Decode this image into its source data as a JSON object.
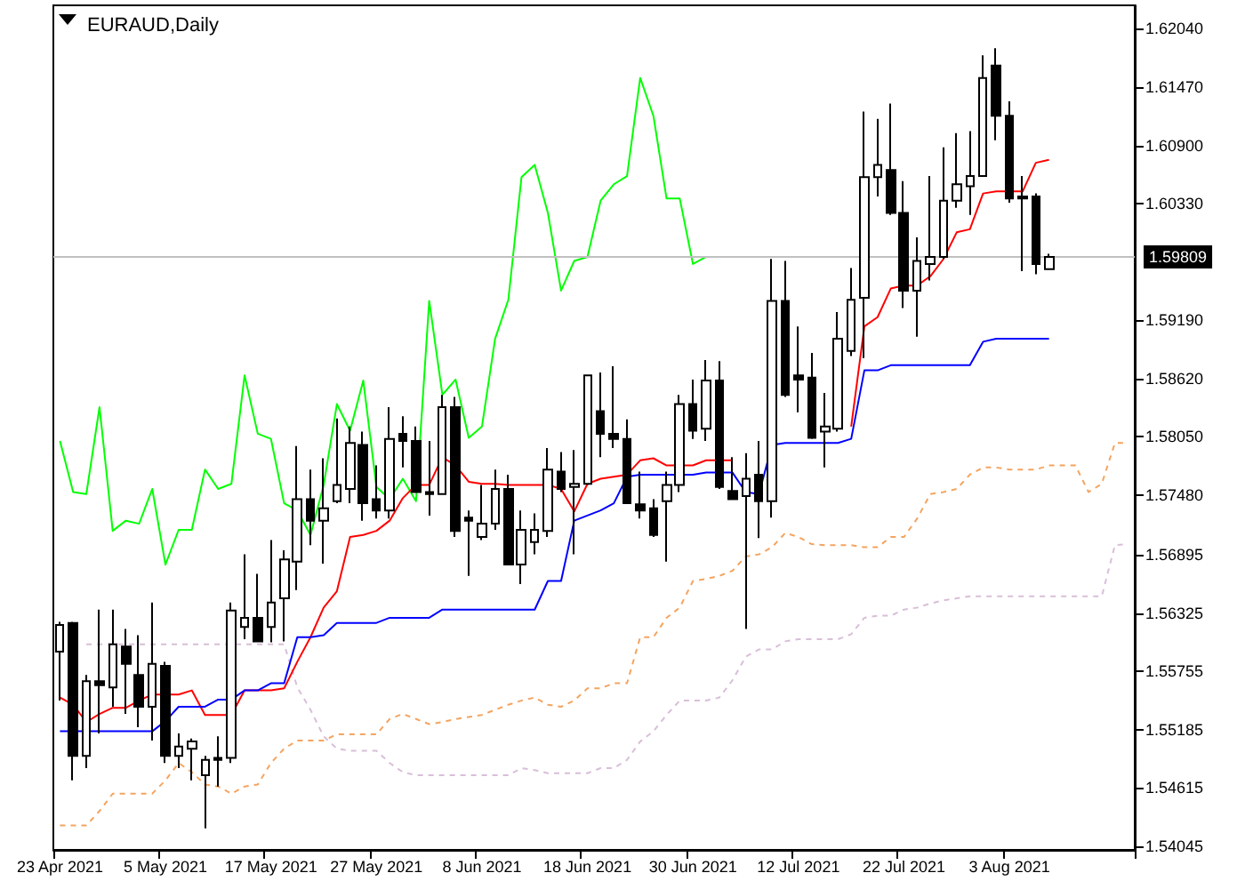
{
  "chart_data": {
    "type": "candlestick",
    "title": "EURAUD,Daily",
    "color": "#000000",
    "categories": [
      "23 Apr 2021",
      null,
      null,
      null,
      null,
      null,
      null,
      null,
      "5 May 2021",
      null,
      null,
      null,
      null,
      null,
      null,
      null,
      "17 May 2021",
      null,
      null,
      null,
      null,
      null,
      null,
      null,
      "27 May 2021",
      null,
      null,
      null,
      null,
      null,
      null,
      null,
      "8 Jun 2021",
      null,
      null,
      null,
      null,
      null,
      null,
      null,
      "18 Jun 2021",
      null,
      null,
      null,
      null,
      null,
      null,
      null,
      "30 Jun 2021",
      null,
      null,
      null,
      null,
      null,
      null,
      null,
      "12 Jul 2021",
      null,
      null,
      null,
      null,
      null,
      null,
      null,
      "22 Jul 2021",
      null,
      null,
      null,
      null,
      null,
      null,
      null,
      "3 Aug 2021",
      null,
      null,
      null,
      null,
      null,
      null,
      null,
      null,
      null
    ],
    "ohlc": [
      [
        1.5595,
        1.5624,
        1.5547,
        1.5621
      ],
      [
        1.5623,
        1.5624,
        1.5469,
        1.5493
      ],
      [
        1.5493,
        1.5572,
        1.5481,
        1.5566
      ],
      [
        1.5566,
        1.5636,
        1.5515,
        1.5562
      ],
      [
        1.556,
        1.5636,
        1.5541,
        1.5602
      ],
      [
        1.56,
        1.5617,
        1.5534,
        1.5583
      ],
      [
        1.5572,
        1.5611,
        1.5521,
        1.5541
      ],
      [
        1.5541,
        1.5643,
        1.5508,
        1.5583
      ],
      [
        1.5581,
        1.5585,
        1.5486,
        1.5493
      ],
      [
        1.5493,
        1.5515,
        1.5481,
        1.5502
      ],
      [
        1.55,
        1.551,
        1.5469,
        1.5507
      ],
      [
        1.5474,
        1.5493,
        1.5422,
        1.5489
      ],
      [
        1.5491,
        1.5512,
        1.5463,
        1.5489
      ],
      [
        1.5491,
        1.5643,
        1.5486,
        1.5635
      ],
      [
        1.5619,
        1.569,
        1.5607,
        1.5628
      ],
      [
        1.5628,
        1.5671,
        1.5604,
        1.5605
      ],
      [
        1.5619,
        1.5704,
        1.5604,
        1.5643
      ],
      [
        1.5647,
        1.5694,
        1.5605,
        1.5685
      ],
      [
        1.5683,
        1.5796,
        1.5655,
        1.5744
      ],
      [
        1.5744,
        1.5773,
        1.5699,
        1.5723
      ],
      [
        1.5723,
        1.5784,
        1.5681,
        1.5735
      ],
      [
        1.5742,
        1.5823,
        1.574,
        1.5758
      ],
      [
        1.5754,
        1.5815,
        1.574,
        1.5799
      ],
      [
        1.5797,
        1.581,
        1.5723,
        1.574
      ],
      [
        1.5744,
        1.5777,
        1.5725,
        1.5733
      ],
      [
        1.5733,
        1.5834,
        1.5725,
        1.5803
      ],
      [
        1.5808,
        1.5825,
        1.5775,
        1.5801
      ],
      [
        1.5801,
        1.5815,
        1.5751,
        1.5751
      ],
      [
        1.5751,
        1.5801,
        1.5728,
        1.5749
      ],
      [
        1.5749,
        1.5846,
        1.5749,
        1.5834
      ],
      [
        1.5834,
        1.5844,
        1.5707,
        1.5713
      ],
      [
        1.5726,
        1.5733,
        1.5669,
        1.5723
      ],
      [
        1.5707,
        1.5758,
        1.5704,
        1.572
      ],
      [
        1.572,
        1.5773,
        1.5714,
        1.5754
      ],
      [
        1.5754,
        1.5768,
        1.568,
        1.568
      ],
      [
        1.568,
        1.5733,
        1.5661,
        1.5714
      ],
      [
        1.5702,
        1.573,
        1.569,
        1.5714
      ],
      [
        1.5713,
        1.5794,
        1.5707,
        1.5773
      ],
      [
        1.5771,
        1.579,
        1.5751,
        1.5754
      ],
      [
        1.5756,
        1.5792,
        1.569,
        1.5759
      ],
      [
        1.5759,
        1.5865,
        1.5758,
        1.5865
      ],
      [
        1.583,
        1.5868,
        1.5785,
        1.5808
      ],
      [
        1.5808,
        1.5874,
        1.5794,
        1.5803
      ],
      [
        1.5803,
        1.5822,
        1.574,
        1.574
      ],
      [
        1.5739,
        1.5771,
        1.5725,
        1.5733
      ],
      [
        1.5735,
        1.5744,
        1.5707,
        1.5709
      ],
      [
        1.5742,
        1.5771,
        1.5683,
        1.5758
      ],
      [
        1.5758,
        1.5846,
        1.5751,
        1.5837
      ],
      [
        1.5837,
        1.5861,
        1.5803,
        1.5811
      ],
      [
        1.5813,
        1.588,
        1.5801,
        1.586
      ],
      [
        1.586,
        1.5879,
        1.5754,
        1.5756
      ],
      [
        1.5752,
        1.5785,
        1.5744,
        1.5744
      ],
      [
        1.5747,
        1.5789,
        1.5617,
        1.5764
      ],
      [
        1.5768,
        1.5801,
        1.5706,
        1.5742
      ],
      [
        1.5742,
        1.5979,
        1.5726,
        1.5938
      ],
      [
        1.5938,
        1.5977,
        1.5844,
        1.5846
      ],
      [
        1.5865,
        1.5913,
        1.5829,
        1.5861
      ],
      [
        1.5863,
        1.5887,
        1.5803,
        1.5804
      ],
      [
        1.581,
        1.5848,
        1.5775,
        1.5815
      ],
      [
        1.5813,
        1.5927,
        1.581,
        1.5901
      ],
      [
        1.5889,
        1.597,
        1.5884,
        1.5939
      ],
      [
        1.5941,
        1.6123,
        1.5882,
        1.6059
      ],
      [
        1.6059,
        1.6116,
        1.604,
        1.6071
      ],
      [
        1.6066,
        1.6131,
        1.6022,
        1.6024
      ],
      [
        1.6024,
        1.6055,
        1.5931,
        1.5948
      ],
      [
        1.5948,
        1.6,
        1.5903,
        1.5977
      ],
      [
        1.5974,
        1.606,
        1.5958,
        1.5981
      ],
      [
        1.5981,
        1.6088,
        1.5979,
        1.6036
      ],
      [
        1.6036,
        1.6102,
        1.6029,
        1.6052
      ],
      [
        1.605,
        1.6104,
        1.6022,
        1.606
      ],
      [
        1.606,
        1.6178,
        1.606,
        1.6156
      ],
      [
        1.6168,
        1.6185,
        1.6095,
        1.6119
      ],
      [
        1.6119,
        1.6133,
        1.6034,
        1.6038
      ],
      [
        1.604,
        1.606,
        1.5967,
        1.6038
      ],
      [
        1.604,
        1.6043,
        1.5964,
        1.5974
      ],
      [
        1.5969,
        1.5984,
        1.5969,
        1.59809
      ],
      null,
      null,
      null,
      null,
      null,
      null
    ],
    "series": [
      {
        "type": "line",
        "color": "#00ff00",
        "values": [
          1.5801,
          1.5751,
          1.5749,
          1.5834,
          1.5713,
          1.5723,
          1.572,
          1.5754,
          1.568,
          1.5714,
          1.5714,
          1.5773,
          1.5754,
          1.5759,
          1.5865,
          1.5808,
          1.5803,
          1.574,
          1.5733,
          1.5709,
          1.5758,
          1.5837,
          1.5811,
          1.586,
          1.5756,
          1.5744,
          1.5764,
          1.5742,
          1.5938,
          1.5846,
          1.5861,
          1.5804,
          1.5815,
          1.5901,
          1.5939,
          1.6059,
          1.6071,
          1.6024,
          1.5948,
          1.5977,
          1.5981,
          1.6036,
          1.6052,
          1.606,
          1.6156,
          1.6119,
          1.6038,
          1.6038,
          1.5974,
          1.5981,
          null,
          null,
          null,
          null,
          null,
          null,
          null,
          null,
          null,
          null,
          null,
          null,
          null,
          null,
          null,
          null,
          null,
          null,
          null,
          null,
          null,
          null,
          null,
          null,
          null,
          null,
          null,
          null,
          null,
          null,
          null,
          null
        ]
      },
      {
        "type": "line",
        "color": "#f4a460",
        "line_style": "dashed",
        "values": [
          1.5425,
          1.5425,
          1.5425,
          1.5439,
          1.5456,
          1.5456,
          1.5456,
          1.5456,
          1.5469,
          1.5486,
          1.5477,
          1.5465,
          1.5463,
          1.5456,
          1.5463,
          1.5465,
          1.5486,
          1.55,
          1.5508,
          1.5508,
          1.5508,
          1.5514,
          1.5514,
          1.5514,
          1.5514,
          1.5529,
          1.5534,
          1.5529,
          1.5524,
          1.5526,
          1.5529,
          1.5531,
          1.5533,
          1.5538,
          1.5543,
          1.5547,
          1.555,
          1.5543,
          1.5541,
          1.5547,
          1.5559,
          1.5559,
          1.5564,
          1.5564,
          1.5609,
          1.5609,
          1.5628,
          1.5638,
          1.5664,
          1.5666,
          1.5669,
          1.5674,
          1.5688,
          1.569,
          1.5697,
          1.5711,
          1.5707,
          1.57,
          1.5699,
          1.5699,
          1.5699,
          1.5697,
          1.5697,
          1.5707,
          1.5707,
          1.5725,
          1.5749,
          1.5751,
          1.5754,
          1.5768,
          1.5775,
          1.5775,
          1.5773,
          1.5773,
          1.5773,
          1.5777,
          1.5777,
          1.5777,
          1.5751,
          1.5759,
          1.5799,
          1.5799
        ]
      },
      {
        "type": "line",
        "color": "#d8bfd8",
        "line_style": "dashed",
        "values": [
          null,
          null,
          1.5602,
          1.5602,
          1.5602,
          1.5602,
          1.5602,
          1.5602,
          1.5602,
          1.5602,
          1.5602,
          1.5602,
          1.5602,
          1.5602,
          1.5602,
          1.5602,
          1.5602,
          1.5602,
          1.556,
          1.5538,
          1.5512,
          1.55,
          1.5498,
          1.5498,
          1.5498,
          1.5486,
          1.5477,
          1.5474,
          1.5474,
          1.5474,
          1.5474,
          1.5474,
          1.5474,
          1.5474,
          1.5474,
          1.5481,
          1.5479,
          1.5476,
          1.5476,
          1.5476,
          1.5476,
          1.5481,
          1.5481,
          1.5489,
          1.5507,
          1.5517,
          1.5533,
          1.5547,
          1.5547,
          1.5547,
          1.555,
          1.5567,
          1.559,
          1.5597,
          1.5597,
          1.5605,
          1.5607,
          1.5607,
          1.5607,
          1.5607,
          1.5612,
          1.5628,
          1.563,
          1.563,
          1.5636,
          1.5638,
          1.5642,
          1.5645,
          1.5647,
          1.5649,
          1.5649,
          1.5649,
          1.5649,
          1.5649,
          1.5649,
          1.5649,
          1.5649,
          1.5649,
          1.5649,
          1.5649,
          1.5699,
          1.57
        ]
      },
      {
        "type": "line",
        "color": "#ff0000",
        "values": [
          1.555,
          1.5543,
          1.5526,
          1.5534,
          1.554,
          1.554,
          1.5547,
          1.5553,
          1.5553,
          1.5553,
          1.5557,
          1.5533,
          1.5533,
          1.5533,
          1.5557,
          1.5557,
          1.5557,
          1.5559,
          1.5585,
          1.5609,
          1.5638,
          1.5654,
          1.5707,
          1.5709,
          1.5713,
          1.5723,
          1.5745,
          1.5758,
          1.5758,
          1.5785,
          1.5777,
          1.5761,
          1.5759,
          1.5759,
          1.5758,
          1.5758,
          1.5758,
          1.5758,
          1.5754,
          1.5732,
          1.5759,
          1.5764,
          1.5766,
          1.5768,
          1.5782,
          1.5784,
          1.5777,
          1.5777,
          1.5777,
          1.5782,
          1.5782,
          1.5782,
          null,
          null,
          null,
          null,
          null,
          null,
          null,
          null,
          1.5815,
          1.5913,
          1.5922,
          1.595,
          1.5953,
          1.5953,
          1.5962,
          1.5979,
          1.6005,
          1.6008,
          1.6043,
          1.6045,
          1.6045,
          1.6045,
          1.6073,
          1.6076,
          null,
          null,
          null,
          null,
          null,
          null
        ]
      },
      {
        "type": "line",
        "color": "#0000ff",
        "values": [
          1.5517,
          1.5517,
          1.5517,
          1.5517,
          1.5517,
          1.5517,
          1.5517,
          1.5517,
          1.5527,
          1.5541,
          1.5541,
          1.5541,
          1.5548,
          1.5548,
          1.5557,
          1.5557,
          1.5564,
          1.5564,
          1.5609,
          1.5609,
          1.5611,
          1.5623,
          1.5623,
          1.5623,
          1.5623,
          1.5628,
          1.5628,
          1.5628,
          1.5628,
          1.5636,
          1.5636,
          1.5636,
          1.5636,
          1.5636,
          1.5636,
          1.5636,
          1.5636,
          1.5664,
          1.5664,
          1.5723,
          1.5728,
          1.5733,
          1.574,
          1.5766,
          1.5768,
          1.5768,
          1.5768,
          1.5768,
          1.5768,
          1.577,
          1.577,
          1.577,
          1.5751,
          1.5749,
          1.5797,
          1.5799,
          1.5799,
          1.5799,
          1.5799,
          1.5799,
          1.5803,
          1.587,
          1.587,
          1.5875,
          1.5875,
          1.5875,
          1.5875,
          1.5875,
          1.5875,
          1.5875,
          1.5898,
          1.5901,
          1.5901,
          1.5901,
          1.5901,
          1.5901,
          null,
          null,
          null,
          null,
          null,
          null
        ]
      }
    ],
    "ref_lines": [
      {
        "axis": "y",
        "value": 1.59809,
        "label": "1.59809",
        "color": "#c0c0c0"
      }
    ],
    "ylim": [
      1.5401,
      1.6227
    ],
    "yticks": [
      {
        "value": 1.6204,
        "label": "1.62040"
      },
      {
        "value": 1.6147,
        "label": "1.61470"
      },
      {
        "value": 1.609,
        "label": "1.60900"
      },
      {
        "value": 1.6033,
        "label": "1.60330"
      },
      {
        "value": 1.5919,
        "label": "1.59190"
      },
      {
        "value": 1.5862,
        "label": "1.58620"
      },
      {
        "value": 1.5805,
        "label": "1.58050"
      },
      {
        "value": 1.5748,
        "label": "1.57480"
      },
      {
        "value": 1.56895,
        "label": "1.56895"
      },
      {
        "value": 1.56325,
        "label": "1.56325"
      },
      {
        "value": 1.55755,
        "label": "1.55755"
      },
      {
        "value": 1.55185,
        "label": "1.55185"
      },
      {
        "value": 1.54615,
        "label": "1.54615"
      },
      {
        "value": 1.54045,
        "label": "1.54045"
      }
    ]
  }
}
